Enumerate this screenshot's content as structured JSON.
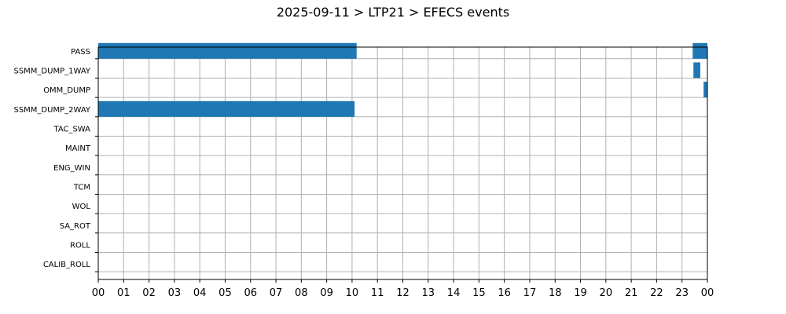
{
  "chart_data": {
    "type": "bar",
    "orientation": "horizontal-timeline",
    "title": "2025-09-11 > LTP21 > EFECS events",
    "xlabel": "",
    "ylabel": "",
    "grid": true,
    "bar_color": "#1f77b4",
    "grid_color": "#b0b0b0",
    "xlim": [
      0,
      24
    ],
    "x_unit": "hours",
    "x_tick_labels": [
      "00",
      "01",
      "02",
      "03",
      "04",
      "05",
      "06",
      "07",
      "08",
      "09",
      "10",
      "11",
      "12",
      "13",
      "14",
      "15",
      "16",
      "17",
      "18",
      "19",
      "20",
      "21",
      "22",
      "23",
      "00"
    ],
    "categories": [
      "PASS",
      "SSMM_DUMP_1WAY",
      "OMM_DUMP",
      "SSMM_DUMP_2WAY",
      "TAC_SWA",
      "MAINT",
      "ENG_WIN",
      "TCM",
      "WOL",
      "SA_ROT",
      "ROLL",
      "CALIB_ROLL"
    ],
    "events": [
      {
        "category": "PASS",
        "start": 0.0,
        "end": 10.18
      },
      {
        "category": "PASS",
        "start": 23.42,
        "end": 24.0
      },
      {
        "category": "SSMM_DUMP_1WAY",
        "start": 23.45,
        "end": 23.72
      },
      {
        "category": "OMM_DUMP",
        "start": 23.85,
        "end": 24.0
      },
      {
        "category": "SSMM_DUMP_2WAY",
        "start": 0.0,
        "end": 10.1
      }
    ]
  }
}
